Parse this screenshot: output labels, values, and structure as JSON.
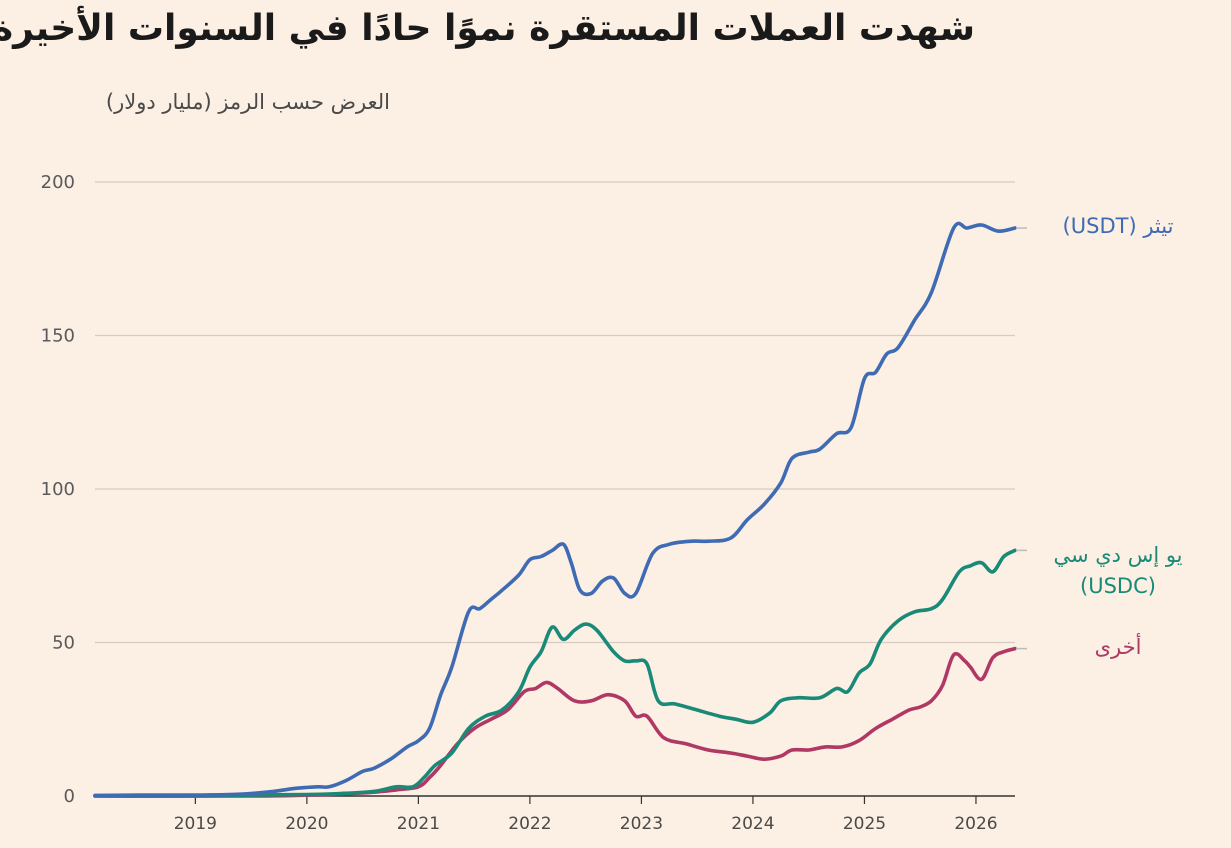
{
  "chart_data": {
    "type": "line",
    "title": "شهدت العملات المستقرة نموًا حادًا في السنوات الأخيرة",
    "subtitle": "العرض حسب الرمز (مليار دولار)",
    "xlabel": "",
    "ylabel": "",
    "xlim": [
      2018.1,
      2026.35
    ],
    "ylim": [
      0,
      200
    ],
    "y_ticks": [
      "0",
      "50",
      "100",
      "150",
      "200"
    ],
    "x_ticks": [
      "2019",
      "2020",
      "2021",
      "2022",
      "2023",
      "2024",
      "2025",
      "2026"
    ],
    "grid": true,
    "series": [
      {
        "name": "tether",
        "label_lines": [
          "تيثر (USDT)"
        ],
        "color": "#3e6bb3",
        "x": [
          2018.1,
          2018.5,
          2019.0,
          2019.4,
          2019.7,
          2019.9,
          2020.1,
          2020.2,
          2020.35,
          2020.5,
          2020.6,
          2020.75,
          2020.9,
          2021.0,
          2021.1,
          2021.2,
          2021.3,
          2021.45,
          2021.55,
          2021.65,
          2021.75,
          2021.9,
          2022.0,
          2022.1,
          2022.2,
          2022.3,
          2022.37,
          2022.45,
          2022.55,
          2022.65,
          2022.75,
          2022.85,
          2022.95,
          2023.1,
          2023.25,
          2023.45,
          2023.6,
          2023.8,
          2023.95,
          2024.1,
          2024.25,
          2024.35,
          2024.5,
          2024.6,
          2024.75,
          2024.88,
          2025.0,
          2025.1,
          2025.2,
          2025.3,
          2025.45,
          2025.6,
          2025.8,
          2025.92,
          2026.05,
          2026.2,
          2026.35
        ],
        "values": [
          0.2,
          0.3,
          0.3,
          0.6,
          1.5,
          2.5,
          3,
          3,
          5,
          8,
          9,
          12,
          16,
          18,
          22,
          33,
          42,
          60,
          61,
          64,
          67,
          72,
          77,
          78,
          80,
          82,
          76,
          67,
          66,
          70,
          71,
          66,
          66,
          79,
          82,
          83,
          83,
          84,
          90,
          95,
          102,
          110,
          112,
          113,
          118,
          120,
          136,
          138,
          144,
          146,
          155,
          164,
          185,
          185,
          186,
          184,
          185
        ]
      },
      {
        "name": "usdc",
        "label_lines": [
          "يو إس دي سي",
          "(USDC)"
        ],
        "color": "#1a8a78",
        "x": [
          2018.1,
          2019.0,
          2019.5,
          2020.0,
          2020.3,
          2020.6,
          2020.8,
          2020.95,
          2021.05,
          2021.15,
          2021.3,
          2021.45,
          2021.6,
          2021.75,
          2021.9,
          2022.0,
          2022.1,
          2022.2,
          2022.3,
          2022.4,
          2022.5,
          2022.6,
          2022.75,
          2022.85,
          2022.95,
          2023.05,
          2023.15,
          2023.3,
          2023.5,
          2023.7,
          2023.85,
          2024.0,
          2024.15,
          2024.25,
          2024.4,
          2024.6,
          2024.75,
          2024.85,
          2024.95,
          2025.05,
          2025.15,
          2025.3,
          2025.45,
          2025.6,
          2025.7,
          2025.85,
          2025.95,
          2026.05,
          2026.15,
          2026.25,
          2026.35
        ],
        "values": [
          0,
          0,
          0.3,
          0.5,
          0.8,
          1.5,
          3,
          3,
          6,
          10,
          14,
          22,
          26,
          28,
          34,
          42,
          47,
          55,
          51,
          54,
          56,
          54,
          47,
          44,
          44,
          43,
          31,
          30,
          28,
          26,
          25,
          24,
          27,
          31,
          32,
          32,
          35,
          34,
          40,
          43,
          51,
          57,
          60,
          61,
          64,
          73,
          75,
          76,
          73,
          78,
          80
        ]
      },
      {
        "name": "other",
        "label_lines": [
          "أخرى"
        ],
        "color": "#b03865",
        "x": [
          2018.1,
          2019.5,
          2020.0,
          2020.5,
          2020.8,
          2021.0,
          2021.1,
          2021.2,
          2021.35,
          2021.5,
          2021.65,
          2021.8,
          2021.95,
          2022.05,
          2022.15,
          2022.25,
          2022.4,
          2022.55,
          2022.7,
          2022.85,
          2022.95,
          2023.05,
          2023.2,
          2023.4,
          2023.6,
          2023.8,
          2023.95,
          2024.1,
          2024.25,
          2024.35,
          2024.5,
          2024.65,
          2024.8,
          2024.95,
          2025.1,
          2025.25,
          2025.4,
          2025.5,
          2025.6,
          2025.7,
          2025.8,
          2025.9,
          2025.95,
          2026.05,
          2026.15,
          2026.25,
          2026.35
        ],
        "values": [
          0,
          0,
          0.3,
          1,
          2,
          3,
          6,
          10,
          17,
          22,
          25,
          28,
          34,
          35,
          37,
          35,
          31,
          31,
          33,
          31,
          26,
          26,
          19,
          17,
          15,
          14,
          13,
          12,
          13,
          15,
          15,
          16,
          16,
          18,
          22,
          25,
          28,
          29,
          31,
          36,
          46,
          44,
          42,
          38,
          45,
          47,
          48
        ]
      }
    ]
  }
}
